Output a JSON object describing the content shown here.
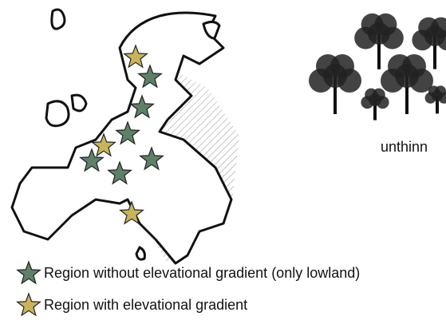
{
  "treatment_label": "unthinn",
  "legend": [
    {
      "label": "Region without elevational gradient (only lowland)"
    },
    {
      "label": "Region with elevational gradient"
    }
  ]
}
